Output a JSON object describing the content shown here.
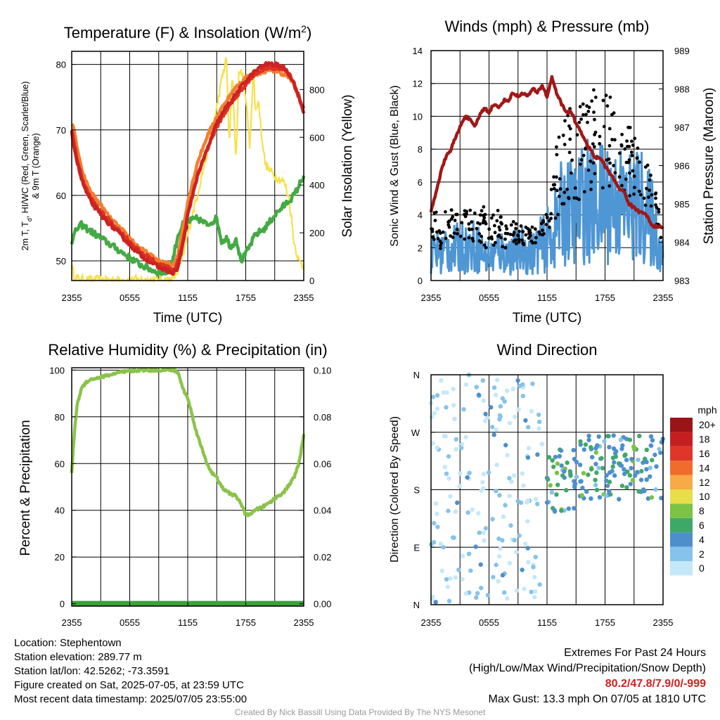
{
  "colors": {
    "t2m": "#cc2222",
    "td": "#44aa44",
    "hi": "#dd3322",
    "t9m": "#f07f30",
    "solar": "#f7e04a",
    "wind": "#4f96d4",
    "gust": "#000000",
    "pressure": "#a01818",
    "rh": "#8bc34a",
    "precip": "#39a339"
  },
  "chart_data": [
    {
      "id": "temp",
      "type": "line",
      "title": "Temperature (F) & Insolation (W/m²)",
      "ylabel": "2m T, Td, HI/WC (Red, Green, Scarlet/Blue) & 9m T (Orange)",
      "ylabel_line1": "2m T, T",
      "ylabel_sub": "d",
      "ylabel_line1b": ", HI/WC (Red, Green, Scarlet/Blue)",
      "ylabel_line2": "& 9m T (Orange)",
      "y2label": "Solar Insolation (Yellow)",
      "xlabel": "Time (UTC)",
      "xticks": [
        "2355",
        "0555",
        "1155",
        "1755",
        "2355"
      ],
      "ylim": [
        47,
        82
      ],
      "yticks": [
        50,
        60,
        70,
        80
      ],
      "y2lim": [
        0,
        960
      ],
      "y2ticks": [
        0,
        200,
        400,
        600,
        800
      ],
      "series": [
        {
          "key": "td",
          "x": [
            0,
            0.5,
            1,
            1.5,
            2,
            3,
            4,
            5,
            6,
            7,
            8,
            9,
            10,
            10.5,
            11,
            11.5,
            12,
            13,
            14,
            15,
            15.5,
            16,
            16.5,
            17,
            17.5,
            18,
            18.5,
            19,
            20,
            21,
            22,
            23,
            23.5,
            24
          ],
          "y": [
            53,
            54.8,
            55.5,
            55,
            54.5,
            53.5,
            52.5,
            51.5,
            50.5,
            49.5,
            48.8,
            48.2,
            48.3,
            50.5,
            54,
            55.5,
            56,
            56.5,
            55.5,
            56.5,
            53,
            53.5,
            52,
            53.5,
            50,
            51,
            52.5,
            54,
            55,
            57,
            58.5,
            60,
            61.5,
            63
          ]
        },
        {
          "key": "t9m",
          "x": [
            0,
            0.3,
            0.6,
            1,
            1.5,
            2,
            3,
            4,
            5,
            6,
            7,
            8,
            9,
            10,
            10.5,
            11,
            11.5,
            12,
            13,
            14,
            15,
            16,
            17,
            18,
            19,
            20,
            21,
            22,
            22.5,
            23,
            23.5,
            24
          ],
          "y": [
            71,
            69.5,
            67,
            64,
            62,
            60.5,
            58.5,
            56.5,
            55,
            53.5,
            52,
            51,
            50,
            49.5,
            49.5,
            51,
            55,
            59,
            65,
            69,
            72,
            74.5,
            76.5,
            78,
            78.5,
            79,
            79,
            78.5,
            78,
            77,
            75,
            73
          ]
        },
        {
          "key": "hi",
          "x": [
            0,
            0.5,
            1,
            1.5,
            2,
            3,
            4,
            5,
            6,
            7,
            8,
            9,
            10,
            10.5,
            11,
            11.5,
            12,
            13,
            14,
            15,
            16,
            17,
            18,
            19,
            20,
            21,
            22,
            22.5,
            23,
            23.5,
            24
          ],
          "y": [
            70,
            66,
            63,
            61,
            59.5,
            57.5,
            56,
            54.5,
            53,
            51.5,
            50.5,
            49.5,
            49,
            48.5,
            50,
            53,
            57,
            63,
            67,
            70.5,
            73,
            75,
            77,
            78.5,
            79.5,
            79.5,
            79,
            78.5,
            77,
            75,
            73
          ]
        },
        {
          "key": "t2m",
          "x": [
            0,
            0.5,
            1,
            1.5,
            2,
            3,
            4,
            5,
            6,
            7,
            8,
            9,
            10,
            10.5,
            11,
            11.5,
            12,
            13,
            14,
            15,
            16,
            17,
            18,
            19,
            20,
            21,
            22,
            22.5,
            23,
            23.5,
            24
          ],
          "y": [
            69.5,
            65.5,
            62.5,
            60.5,
            59,
            57,
            55.5,
            54,
            52.5,
            51,
            50,
            49,
            48.5,
            48,
            49,
            52.5,
            57,
            63,
            67,
            71,
            73.5,
            75.5,
            77.5,
            79,
            80,
            80,
            79.5,
            78.5,
            77,
            75,
            72.5
          ]
        }
      ],
      "solar": {
        "x": [
          0,
          0.3,
          1,
          2,
          3,
          4,
          5,
          6,
          7,
          8,
          9,
          9.5,
          10,
          10.5,
          11,
          11.5,
          12,
          12.5,
          13,
          13.5,
          14,
          14.5,
          15,
          15.5,
          16,
          16.3,
          16.6,
          17,
          17.3,
          17.6,
          18,
          18.4,
          18.8,
          19,
          19.3,
          19.6,
          20,
          20.5,
          21,
          22,
          22.5,
          23,
          23.5,
          24
        ],
        "y": [
          60,
          10,
          3,
          2,
          2,
          2,
          2,
          2,
          2,
          2,
          2,
          2,
          2,
          10,
          40,
          100,
          190,
          280,
          360,
          450,
          530,
          630,
          720,
          840,
          930,
          560,
          860,
          500,
          880,
          870,
          780,
          560,
          880,
          700,
          760,
          630,
          490,
          460,
          440,
          410,
          340,
          160,
          80,
          60
        ]
      },
      "rng": [
        0.8,
        6.0
      ]
    },
    {
      "id": "wind",
      "type": "line",
      "title": "Winds (mph) & Pressure (mb)",
      "ylabel": "Sonic Wind & Gust (Blue, Black)",
      "y2label": "Station Pressure (Maroon)",
      "xlabel": "Time (UTC)",
      "xticks": [
        "2355",
        "0555",
        "1155",
        "1755",
        "2355"
      ],
      "ylim": [
        0,
        14
      ],
      "yticks": [
        0,
        2,
        4,
        6,
        8,
        10,
        12,
        14
      ],
      "y2lim": [
        983,
        989
      ],
      "y2ticks": [
        983,
        984,
        985,
        986,
        987,
        988,
        989
      ],
      "series": [
        {
          "key": "pressure",
          "x": [
            0,
            0.5,
            1,
            1.5,
            2,
            2.5,
            3,
            3.5,
            4,
            4.5,
            5,
            5.5,
            6,
            6.5,
            7,
            7.5,
            8,
            8.5,
            9,
            9.5,
            10,
            10.5,
            11,
            11.5,
            12,
            12.5,
            13,
            13.5,
            14,
            14.5,
            15,
            15.5,
            16,
            16.5,
            17,
            17.5,
            18,
            18.5,
            19,
            19.5,
            20,
            20.5,
            21,
            21.5,
            22,
            22.5,
            23,
            23.5,
            24
          ],
          "y": [
            984.8,
            985.3,
            985.8,
            986.2,
            986.4,
            986.7,
            987,
            987.3,
            987.2,
            987,
            987.3,
            987.5,
            987.4,
            987.6,
            987.5,
            987.7,
            987.7,
            987.9,
            987.8,
            987.9,
            987.8,
            988,
            987.9,
            988.1,
            987.8,
            988.3,
            987.9,
            987.6,
            987.4,
            987.4,
            987.1,
            986.9,
            986.6,
            986.4,
            986.2,
            986.2,
            986,
            985.8,
            985.6,
            985.4,
            985.3,
            985,
            984.9,
            984.8,
            984.8,
            984.6,
            984.4,
            984.4,
            984.4
          ]
        },
        {
          "key": "wind",
          "x": [
            0,
            0.5,
            1,
            1.5,
            2,
            2.5,
            3,
            3.5,
            4,
            4.5,
            5,
            5.5,
            6,
            6.5,
            7,
            7.5,
            8,
            8.5,
            9,
            9.5,
            10,
            10.5,
            11,
            11.5,
            12,
            12.5,
            13,
            13.5,
            14,
            14.5,
            15,
            15.5,
            16,
            16.5,
            17,
            17.5,
            18,
            18.5,
            19,
            19.5,
            20,
            20.5,
            21,
            21.5,
            22,
            22.5,
            23,
            23.5,
            24
          ],
          "y": [
            1.5,
            1.8,
            1.6,
            2,
            1.8,
            1.9,
            2,
            2,
            2,
            2.1,
            1.9,
            1.5,
            1.4,
            1.6,
            1.8,
            1.7,
            1.5,
            1.8,
            1.7,
            1.9,
            1.7,
            1.6,
            2,
            2.2,
            2.5,
            2.6,
            3.3,
            4.1,
            4.3,
            4.2,
            4.1,
            4.6,
            5.1,
            4.6,
            4.4,
            4.7,
            4.9,
            4.8,
            4.6,
            4.7,
            4.4,
            4.5,
            4.6,
            4.4,
            4.5,
            3.8,
            3.5,
            2.3,
            1.5
          ]
        }
      ],
      "gust_envelope": {
        "x": [
          0,
          2,
          4,
          6,
          8,
          10,
          11,
          12,
          12.5,
          13,
          14,
          15,
          16,
          17,
          18,
          19,
          20,
          21,
          22,
          23,
          24
        ],
        "y": [
          4,
          4,
          4,
          4.5,
          3.5,
          3,
          3,
          4,
          6,
          8,
          10,
          10.5,
          11,
          11.5,
          11,
          11,
          10,
          9.5,
          8,
          6,
          2.5
        ]
      },
      "rng": [
        1.0,
        1.6
      ]
    },
    {
      "id": "rh",
      "type": "line",
      "title": "Relative Humidity (%) & Precipitation (in)",
      "ylabel": "Percent & Precipitation",
      "xlabel": "",
      "xticks": [
        "2355",
        "0555",
        "1155",
        "1755",
        "2355"
      ],
      "ylim": [
        -1,
        101
      ],
      "yticks": [
        0,
        20,
        40,
        60,
        80,
        100
      ],
      "y2lim": [
        -0.001,
        0.101
      ],
      "y2ticks": [
        "0.00",
        "0.02",
        "0.04",
        "0.06",
        "0.08",
        "0.10"
      ],
      "series": [
        {
          "key": "rh",
          "x": [
            0,
            0.3,
            0.6,
            1,
            1.5,
            2,
            3,
            4,
            5,
            6,
            7,
            8,
            9,
            10,
            10.5,
            11,
            11.5,
            12,
            12.5,
            13,
            13.5,
            14,
            14.5,
            15,
            15.5,
            16,
            16.5,
            17,
            17.5,
            18,
            18.5,
            19,
            20,
            21,
            22,
            23,
            23.5,
            24
          ],
          "y": [
            56,
            75,
            86,
            92,
            95,
            96,
            97,
            98,
            99,
            99.5,
            100,
            100,
            100,
            100,
            100,
            99,
            92,
            88,
            80,
            72,
            66,
            60,
            56,
            54,
            50,
            48,
            47,
            46,
            43,
            38,
            38.5,
            40,
            42,
            45,
            48,
            54,
            60,
            72
          ]
        },
        {
          "key": "precip",
          "x": [
            0,
            24
          ],
          "y": [
            0,
            0
          ]
        }
      ]
    },
    {
      "id": "dir",
      "type": "scatter",
      "title": "Wind Direction",
      "ylabel": "Direction (Colored By Speed)",
      "xticks": [
        "2355",
        "0555",
        "1155",
        "1755",
        "2355"
      ],
      "yticks": [
        "N",
        "E",
        "S",
        "W",
        "N"
      ],
      "ylim": [
        0,
        360
      ],
      "legend": {
        "title": "mph",
        "labels": [
          "0",
          "2",
          "4",
          "6",
          "8",
          "10",
          "12",
          "14",
          "16",
          "18",
          "20+"
        ],
        "colors": [
          "#c4e8f7",
          "#86c3ea",
          "#4d8fcb",
          "#3ea868",
          "#7cc244",
          "#e7de4a",
          "#f7aa45",
          "#f06c2c",
          "#e0362a",
          "#c41f20",
          "#9a1418"
        ]
      }
    }
  ],
  "info": {
    "location": "Location: Stephentown",
    "elevation": "Station elevation: 289.77 m",
    "latlon": "Station lat/lon: 42.5262; -73.3591",
    "created": "Figure created on Sat, 2025-07-05, at 23:59 UTC",
    "recent": "Most recent data timestamp: 2025/07/05 23:55:00"
  },
  "extremes": {
    "title": "Extremes For Past 24 Hours",
    "subtitle": "(High/Low/Max Wind/Precipitation/Snow Depth)",
    "values": "80.2/47.8/7.9/0/-999",
    "gust": "Max Gust: 13.3 mph On 07/05 at 1810 UTC"
  },
  "credit": "Created By Nick Bassill Using Data Provided By The NYS Mesonet"
}
